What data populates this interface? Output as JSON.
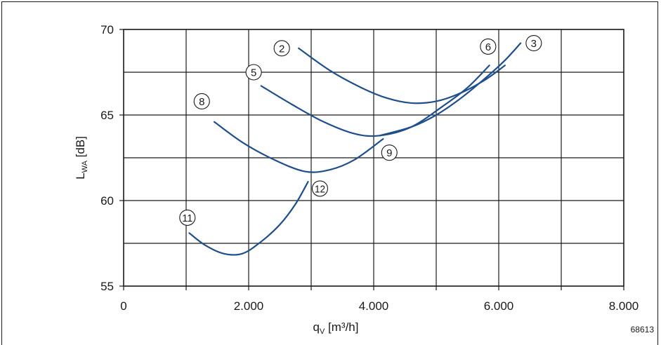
{
  "chart_data": {
    "type": "line",
    "xlabel": "q",
    "xlabel_sub": "V",
    "xlabel_unit": " [m³/h]",
    "ylabel": "L",
    "ylabel_sub": "WA",
    "ylabel_unit": " [dB]",
    "xlim": [
      0,
      8000
    ],
    "ylim": [
      55,
      70
    ],
    "x_ticks": [
      0,
      2000,
      4000,
      6000,
      8000
    ],
    "x_tick_labels": [
      "0",
      "2.000",
      "4.000",
      "6.000",
      "8.000"
    ],
    "y_ticks": [
      55,
      60,
      65,
      70
    ],
    "y_tick_labels": [
      "55",
      "60",
      "65",
      "70"
    ],
    "x_grid_step": 1000,
    "y_grid_step": 2.5,
    "grid": true,
    "line_color": "#1f4e8c",
    "figure_id": "68613",
    "series": [
      {
        "label": "2",
        "points": [
          [
            2800,
            68.9
          ],
          [
            3300,
            67.6
          ],
          [
            3800,
            66.6
          ],
          [
            4200,
            66.0
          ],
          [
            4600,
            65.7
          ],
          [
            5000,
            65.8
          ],
          [
            5400,
            66.3
          ],
          [
            5800,
            67.1
          ],
          [
            6100,
            67.9
          ]
        ],
        "marker": {
          "x": 2530,
          "y": 68.9
        }
      },
      {
        "label": "3",
        "points": [
          [
            4100,
            63.8
          ],
          [
            4600,
            64.3
          ],
          [
            5000,
            65.0
          ],
          [
            5400,
            66.0
          ],
          [
            5800,
            67.2
          ],
          [
            6100,
            68.2
          ],
          [
            6350,
            69.2
          ]
        ],
        "marker": {
          "x": 6560,
          "y": 69.2
        }
      },
      {
        "label": "5",
        "points": [
          [
            2200,
            66.7
          ],
          [
            2700,
            65.6
          ],
          [
            3200,
            64.6
          ],
          [
            3700,
            63.9
          ],
          [
            4100,
            63.8
          ],
          [
            4600,
            64.3
          ],
          [
            5100,
            65.5
          ],
          [
            5500,
            66.6
          ],
          [
            5850,
            67.9
          ]
        ],
        "marker": {
          "x": 2080,
          "y": 67.5
        }
      },
      {
        "label": "6",
        "points": [],
        "marker": {
          "x": 5830,
          "y": 69.0
        }
      },
      {
        "label": "8",
        "points": [
          [
            1450,
            64.6
          ],
          [
            1900,
            63.4
          ],
          [
            2400,
            62.4
          ],
          [
            2900,
            61.7
          ],
          [
            3300,
            61.8
          ],
          [
            3700,
            62.4
          ],
          [
            4150,
            63.6
          ]
        ],
        "marker": {
          "x": 1250,
          "y": 65.8
        }
      },
      {
        "label": "9",
        "points": [],
        "marker": {
          "x": 4250,
          "y": 62.8
        }
      },
      {
        "label": "11",
        "points": [
          [
            1050,
            58.1
          ],
          [
            1300,
            57.4
          ],
          [
            1600,
            56.9
          ],
          [
            1900,
            56.9
          ],
          [
            2200,
            57.6
          ],
          [
            2500,
            58.6
          ],
          [
            2750,
            59.8
          ],
          [
            2950,
            61.1
          ]
        ],
        "marker": {
          "x": 1020,
          "y": 59.0
        }
      },
      {
        "label": "12",
        "points": [],
        "marker": {
          "x": 3140,
          "y": 60.7
        }
      }
    ]
  }
}
